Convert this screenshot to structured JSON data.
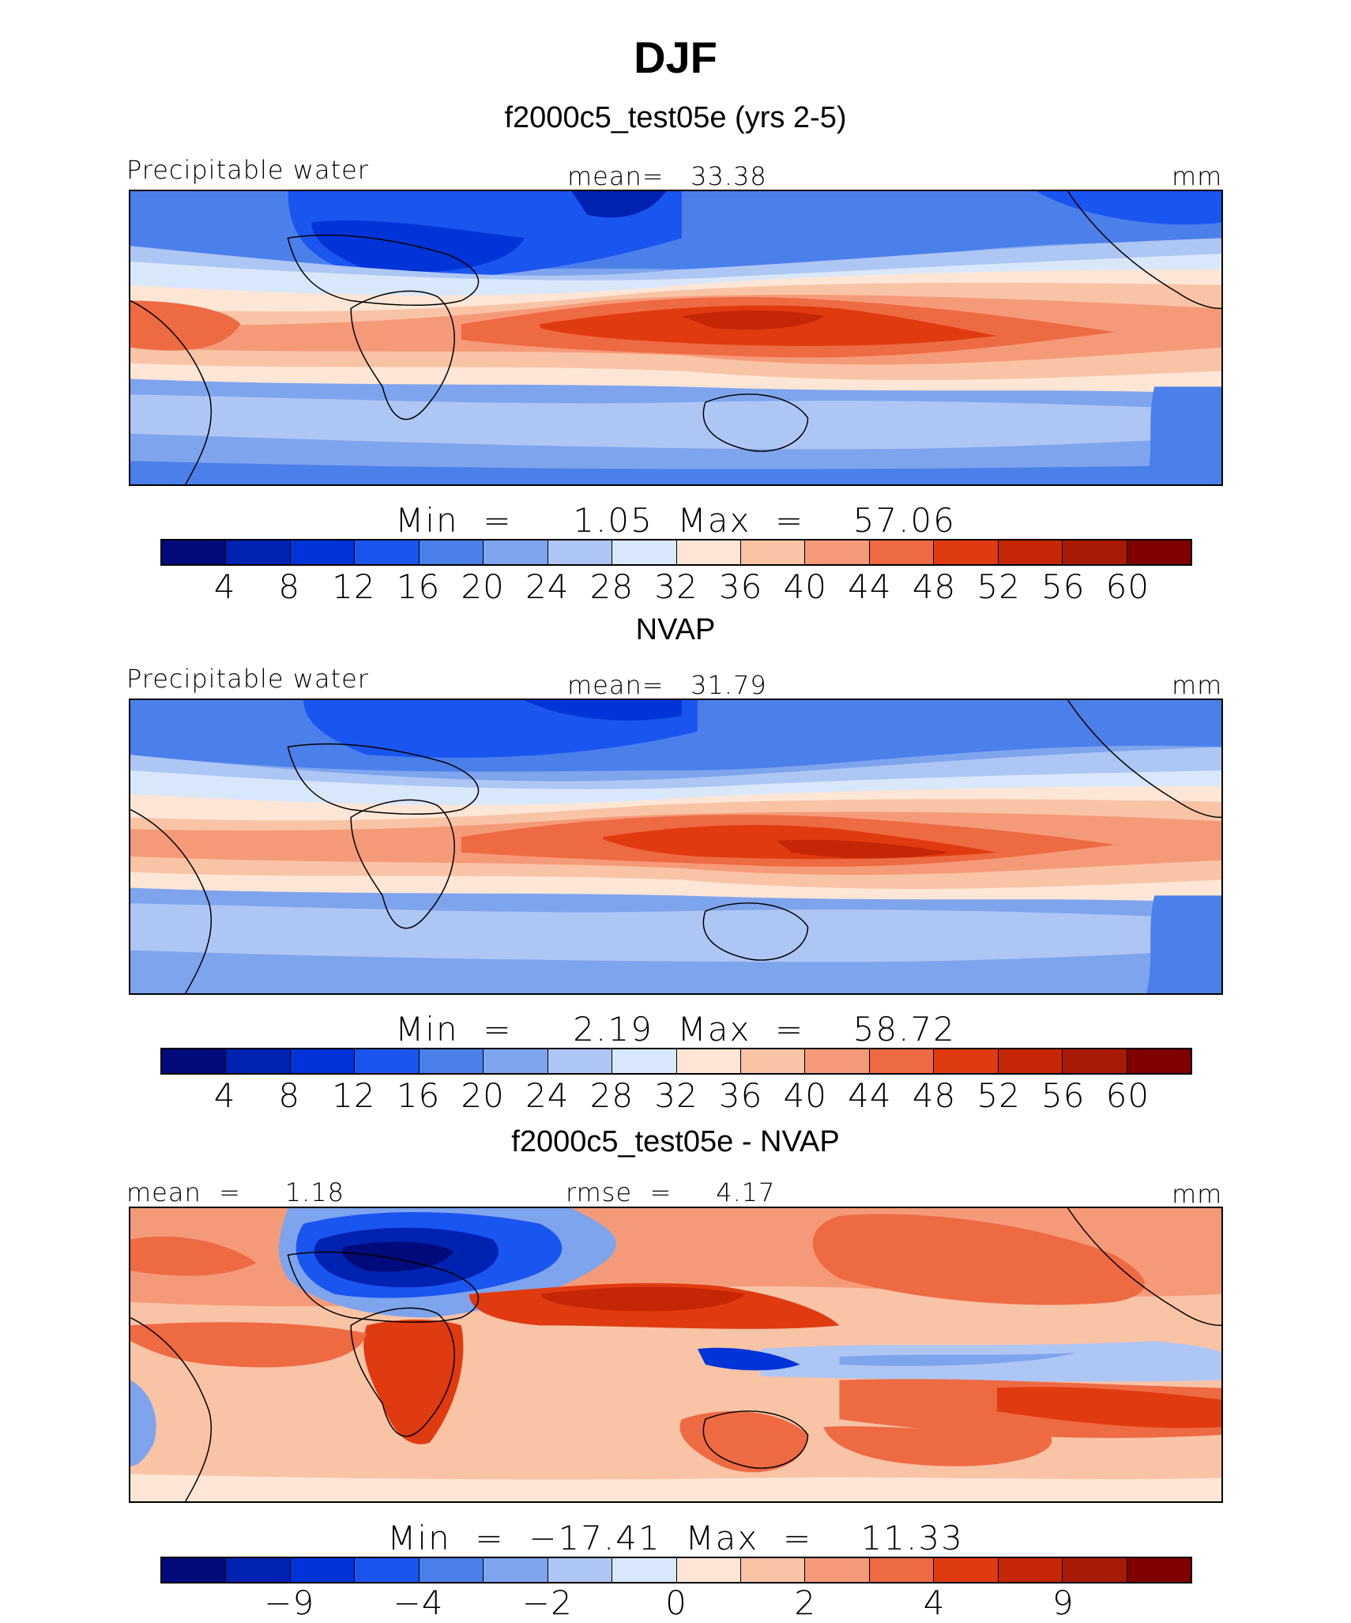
{
  "title": "DJF",
  "panels": [
    {
      "heading": "f2000c5_test05e (yrs 2-5)",
      "left_label": "Precipitable water",
      "center_label": "mean=   33.38",
      "right_label": "mm",
      "min_max": "Min  =     1.05  Max  =    57.06",
      "colorbar_labels": [
        "4",
        "8",
        "12",
        "16",
        "20",
        "24",
        "28",
        "32",
        "36",
        "40",
        "44",
        "48",
        "52",
        "56",
        "60"
      ]
    },
    {
      "heading": "NVAP",
      "left_label": "Precipitable water",
      "center_label": "mean=   31.79",
      "right_label": "mm",
      "min_max": "Min  =     2.19  Max  =    58.72",
      "colorbar_labels": [
        "4",
        "8",
        "12",
        "16",
        "20",
        "24",
        "28",
        "32",
        "36",
        "40",
        "44",
        "48",
        "52",
        "56",
        "60"
      ]
    },
    {
      "heading": "f2000c5_test05e - NVAP",
      "left_label": "mean  =     1.18",
      "center_label": "rmse  =     4.17",
      "right_label": "mm",
      "min_max": "Min  =  −17.41  Max  =    11.33",
      "colorbar_labels": [
        "−9",
        "−4",
        "−2",
        "0",
        "2",
        "4",
        "9"
      ]
    }
  ],
  "colors": {
    "palette": [
      "#000a7a",
      "#0022b0",
      "#0033d8",
      "#1a55f0",
      "#4b7fea",
      "#7fa4ee",
      "#aec6f4",
      "#d9e7fb",
      "#fde6d6",
      "#f9c3a6",
      "#f59a78",
      "#ee6a43",
      "#e03a10",
      "#c42606",
      "#a81a06",
      "#800000"
    ],
    "diverging": [
      "#000a7a",
      "#0022b0",
      "#0033d8",
      "#1a55f0",
      "#4b7fea",
      "#7fa4ee",
      "#aec6f4",
      "#d9e7fb",
      "#fde6d6",
      "#f9c3a6",
      "#f59a78",
      "#ee6a43",
      "#e03a10",
      "#c42606",
      "#a81a06",
      "#800000"
    ]
  }
}
